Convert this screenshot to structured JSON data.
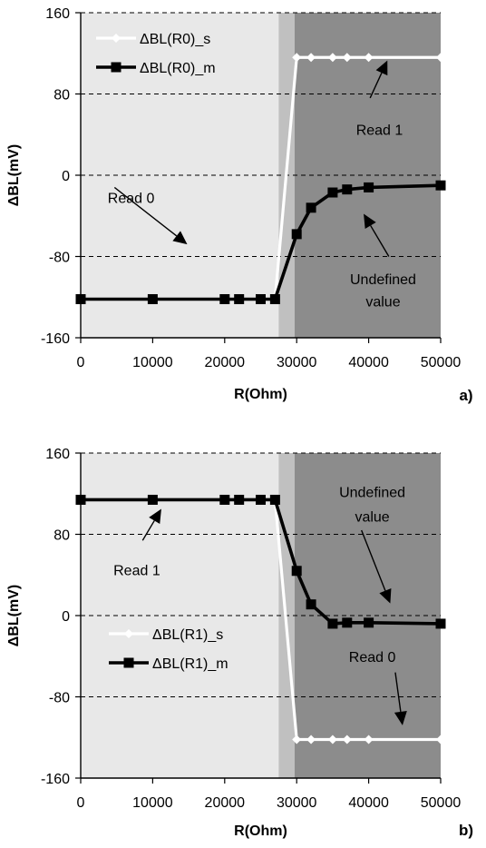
{
  "chart_data": [
    {
      "type": "line",
      "panel_label": "a)",
      "xlabel": "R(Ohm)",
      "ylabel": "ΔBL(mV)",
      "xlim": [
        0,
        50000
      ],
      "ylim": [
        -160,
        160
      ],
      "x_ticks": [
        0,
        10000,
        20000,
        30000,
        40000,
        50000
      ],
      "y_ticks": [
        160,
        80,
        0,
        -80,
        -160
      ],
      "grid": "horizontal dashed",
      "legend_position": "top-left",
      "regions": [
        {
          "x_range": [
            0,
            27500
          ],
          "color": "#e8e8e8"
        },
        {
          "x_range": [
            27500,
            29700
          ],
          "color": "#c0c0c0"
        },
        {
          "x_range": [
            29700,
            50000
          ],
          "color": "#8c8c8c"
        }
      ],
      "series": [
        {
          "name": "ΔBL(R0)_s",
          "color": "#ffffff",
          "marker": "diamond",
          "x": [
            0,
            10000,
            20000,
            22000,
            25000,
            27000,
            30000,
            32000,
            35000,
            37000,
            40000,
            50000
          ],
          "y": [
            -122,
            -122,
            -122,
            -122,
            -122,
            -122,
            116,
            116,
            116,
            116,
            116,
            116
          ]
        },
        {
          "name": "ΔBL(R0)_m",
          "color": "#000000",
          "marker": "square",
          "x": [
            0,
            10000,
            20000,
            22000,
            25000,
            27000,
            30000,
            32000,
            35000,
            37000,
            40000,
            50000
          ],
          "y": [
            -122,
            -122,
            -122,
            -122,
            -122,
            -122,
            -58,
            -32,
            -17,
            -14,
            -12,
            -10
          ]
        }
      ],
      "annotations": [
        {
          "text": "Read 0",
          "x": 7000,
          "y": -22
        },
        {
          "text": "Read 1",
          "x": 41500,
          "y": 45
        },
        {
          "text": "Undefined",
          "x": 42000,
          "y": -102
        },
        {
          "text": "value",
          "x": 42000,
          "y": -124
        }
      ]
    },
    {
      "type": "line",
      "panel_label": "b)",
      "xlabel": "R(Ohm)",
      "ylabel": "ΔBL(mV)",
      "xlim": [
        0,
        50000
      ],
      "ylim": [
        -160,
        160
      ],
      "x_ticks": [
        0,
        10000,
        20000,
        30000,
        40000,
        50000
      ],
      "y_ticks": [
        160,
        80,
        0,
        -80,
        -160
      ],
      "grid": "horizontal dashed",
      "legend_position": "bottom-left",
      "regions": [
        {
          "x_range": [
            0,
            27500
          ],
          "color": "#e8e8e8"
        },
        {
          "x_range": [
            27500,
            29700
          ],
          "color": "#c0c0c0"
        },
        {
          "x_range": [
            29700,
            50000
          ],
          "color": "#8c8c8c"
        }
      ],
      "series": [
        {
          "name": "ΔBL(R1)_s",
          "color": "#ffffff",
          "marker": "diamond",
          "x": [
            0,
            10000,
            20000,
            22000,
            25000,
            27000,
            30000,
            32000,
            35000,
            37000,
            40000,
            50000
          ],
          "y": [
            114,
            114,
            114,
            114,
            114,
            114,
            -122,
            -122,
            -122,
            -122,
            -122,
            -122
          ]
        },
        {
          "name": "ΔBL(R1)_m",
          "color": "#000000",
          "marker": "square",
          "x": [
            0,
            10000,
            20000,
            22000,
            25000,
            27000,
            30000,
            32000,
            35000,
            37000,
            40000,
            50000
          ],
          "y": [
            114,
            114,
            114,
            114,
            114,
            114,
            44,
            11,
            -8,
            -7,
            -7,
            -8
          ]
        }
      ],
      "annotations": [
        {
          "text": "Read 1",
          "x": 7800,
          "y": 45
        },
        {
          "text": "Undefined",
          "x": 40500,
          "y": 122
        },
        {
          "text": "value",
          "x": 40500,
          "y": 98
        },
        {
          "text": "Read 0",
          "x": 40500,
          "y": -40
        }
      ]
    }
  ]
}
